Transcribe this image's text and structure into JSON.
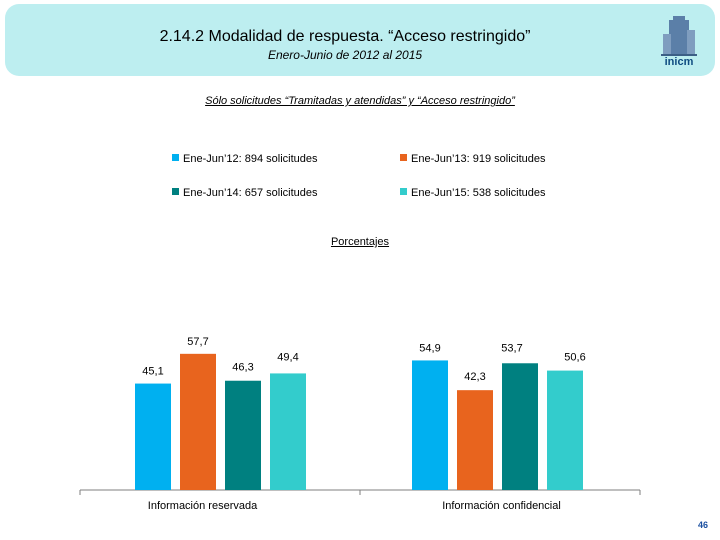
{
  "header": {
    "title": "2.14.2 Modalidad de respuesta. “Acceso restringido”",
    "subtitle": "Enero-Junio de 2012 al 2015"
  },
  "logo": {
    "text": "inicm",
    "icon": "building-logo-icon"
  },
  "note": "Sólo solicitudes “Tramitadas y atendidas” y “Acceso restringido”",
  "page_number": "46",
  "chart_data": {
    "type": "bar",
    "unit_label": "Porcentajes",
    "categories": [
      "Información reservada",
      "Información confidencial"
    ],
    "series": [
      {
        "name": "Ene-Jun’12: 894 solicitudes",
        "color": "#00b0f0",
        "values": [
          45.1,
          54.9
        ],
        "labels": [
          "45,1",
          "54,9"
        ]
      },
      {
        "name": "Ene-Jun’13: 919 solicitudes",
        "color": "#e8641e",
        "values": [
          57.7,
          42.3
        ],
        "labels": [
          "57,7",
          "42,3"
        ]
      },
      {
        "name": "Ene-Jun’14: 657 solicitudes",
        "color": "#008080",
        "values": [
          46.3,
          53.7
        ],
        "labels": [
          "46,3",
          "53,7"
        ]
      },
      {
        "name": "Ene-Jun’15: 538 solicitudes",
        "color": "#33cccc",
        "values": [
          49.4,
          50.6
        ],
        "labels": [
          "49,4",
          "50,6"
        ]
      }
    ],
    "legend_position": "top",
    "grid": false
  }
}
